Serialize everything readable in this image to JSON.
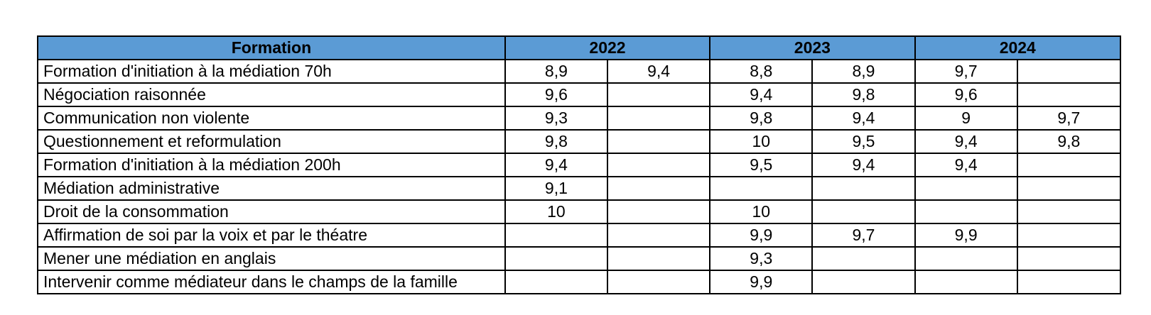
{
  "header": {
    "formation": "Formation",
    "years": [
      "2022",
      "2023",
      "2024"
    ]
  },
  "rows": [
    {
      "name": "Formation d'initiation à la médiation 70h",
      "values": [
        "8,9",
        "9,4",
        "8,8",
        "8,9",
        "9,7",
        ""
      ]
    },
    {
      "name": "Négociation raisonnée",
      "values": [
        "9,6",
        "",
        "9,4",
        "9,8",
        "9,6",
        ""
      ]
    },
    {
      "name": "Communication non violente",
      "values": [
        "9,3",
        "",
        "9,8",
        "9,4",
        "9",
        "9,7"
      ]
    },
    {
      "name": "Questionnement et reformulation",
      "values": [
        "9,8",
        "",
        "10",
        "9,5",
        "9,4",
        "9,8"
      ]
    },
    {
      "name": "Formation d'initiation à la médiation 200h",
      "values": [
        "9,4",
        "",
        "9,5",
        "9,4",
        "9,4",
        ""
      ]
    },
    {
      "name": "Médiation administrative",
      "values": [
        "9,1",
        "",
        "",
        "",
        "",
        ""
      ]
    },
    {
      "name": "Droit de la consommation",
      "values": [
        "10",
        "",
        "10",
        "",
        "",
        ""
      ]
    },
    {
      "name": "Affirmation de soi par la voix et par le théatre",
      "values": [
        "",
        "",
        "9,9",
        "9,7",
        "9,9",
        ""
      ]
    },
    {
      "name": "Mener une médiation en anglais",
      "values": [
        "",
        "",
        "9,3",
        "",
        "",
        ""
      ]
    },
    {
      "name": "Intervenir comme médiateur dans le champs de la famille",
      "values": [
        "",
        "",
        "9,9",
        "",
        "",
        ""
      ]
    }
  ],
  "colors": {
    "header_bg": "#5b9bd5",
    "border": "#000000"
  }
}
